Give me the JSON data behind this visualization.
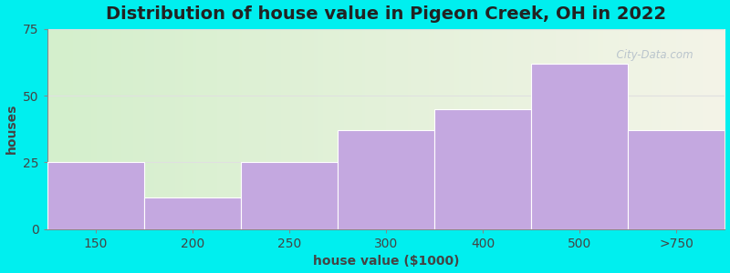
{
  "categories": [
    "150",
    "200",
    "250",
    "300",
    "400",
    "500",
    ">750"
  ],
  "values": [
    25,
    12,
    25,
    37,
    45,
    62,
    37
  ],
  "bar_color": "#c4a8e0",
  "bar_edgecolor": "#ffffff",
  "background_color": "#00EFEF",
  "plot_bg_left": "#d4efcc",
  "plot_bg_right": "#f4f4e8",
  "title": "Distribution of house value in Pigeon Creek, OH in 2022",
  "xlabel": "house value ($1000)",
  "ylabel": "houses",
  "ylim": [
    0,
    75
  ],
  "yticks": [
    0,
    25,
    50,
    75
  ],
  "title_fontsize": 14,
  "axis_label_fontsize": 10,
  "tick_fontsize": 10,
  "watermark": "  City-Data.com",
  "watermark_color": "#b0bcc8",
  "grid_color": "#e0e0e0"
}
